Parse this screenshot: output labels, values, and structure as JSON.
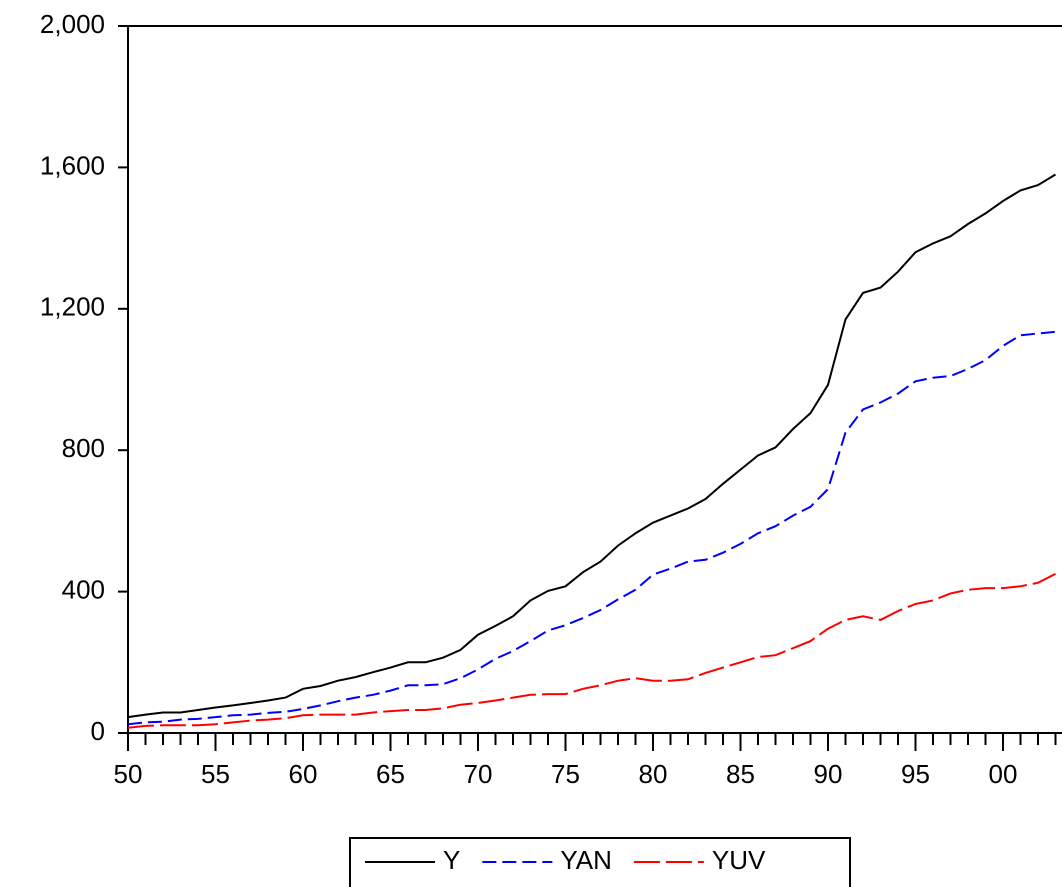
{
  "chart_data": {
    "type": "line",
    "x": [
      1950,
      1951,
      1952,
      1953,
      1954,
      1955,
      1956,
      1957,
      1958,
      1959,
      1960,
      1961,
      1962,
      1963,
      1964,
      1965,
      1966,
      1967,
      1968,
      1969,
      1970,
      1971,
      1972,
      1973,
      1974,
      1975,
      1976,
      1977,
      1978,
      1979,
      1980,
      1981,
      1982,
      1983,
      1984,
      1985,
      1986,
      1987,
      1988,
      1989,
      1990,
      1991,
      1992,
      1993,
      1994,
      1995,
      1996,
      1997,
      1998,
      1999,
      2000,
      2001,
      2002,
      2003
    ],
    "series": [
      {
        "name": "Y",
        "color": "#000000",
        "style": "solid",
        "values": [
          45,
          52,
          58,
          58,
          65,
          72,
          78,
          85,
          92,
          100,
          125,
          133,
          148,
          158,
          172,
          185,
          200,
          200,
          213,
          235,
          278,
          303,
          330,
          375,
          402,
          415,
          455,
          485,
          530,
          565,
          595,
          615,
          635,
          662,
          705,
          745,
          785,
          808,
          860,
          905,
          985,
          1170,
          1245,
          1260,
          1305,
          1360,
          1385,
          1405,
          1440,
          1470,
          1505,
          1535,
          1550,
          1580
        ]
      },
      {
        "name": "YAN",
        "color": "#0000ff",
        "style": "dashed",
        "values": [
          25,
          30,
          32,
          38,
          40,
          45,
          50,
          52,
          57,
          60,
          68,
          78,
          90,
          100,
          108,
          120,
          135,
          135,
          138,
          155,
          180,
          210,
          232,
          260,
          290,
          305,
          325,
          348,
          378,
          405,
          448,
          465,
          485,
          490,
          510,
          535,
          565,
          585,
          615,
          640,
          690,
          850,
          915,
          935,
          960,
          995,
          1005,
          1010,
          1030,
          1055,
          1095,
          1125,
          1130,
          1135
        ]
      },
      {
        "name": "YUV",
        "color": "#ff0000",
        "style": "long-dashed",
        "values": [
          15,
          20,
          22,
          22,
          22,
          25,
          30,
          35,
          38,
          42,
          50,
          52,
          52,
          52,
          58,
          62,
          65,
          65,
          70,
          80,
          85,
          92,
          100,
          108,
          110,
          110,
          125,
          135,
          148,
          155,
          148,
          148,
          152,
          170,
          185,
          200,
          215,
          220,
          240,
          260,
          295,
          320,
          330,
          320,
          345,
          365,
          375,
          395,
          405,
          410,
          410,
          415,
          425,
          450
        ]
      }
    ],
    "xlim": [
      1950,
      2003.4
    ],
    "xticks": [
      {
        "value": 1950,
        "label": "50"
      },
      {
        "value": 1955,
        "label": "55"
      },
      {
        "value": 1960,
        "label": "60"
      },
      {
        "value": 1965,
        "label": "65"
      },
      {
        "value": 1970,
        "label": "70"
      },
      {
        "value": 1975,
        "label": "75"
      },
      {
        "value": 1980,
        "label": "80"
      },
      {
        "value": 1985,
        "label": "85"
      },
      {
        "value": 1990,
        "label": "90"
      },
      {
        "value": 1995,
        "label": "95"
      },
      {
        "value": 2000,
        "label": "00"
      }
    ],
    "ylim": [
      0,
      2000
    ],
    "yticks": [
      0,
      400,
      800,
      {
        "value": 1200,
        "label": "1,200"
      },
      {
        "value": 1600,
        "label": "1,600"
      },
      {
        "value": 2000,
        "label": "2,000"
      }
    ],
    "grid": false,
    "legend": "bottom"
  }
}
